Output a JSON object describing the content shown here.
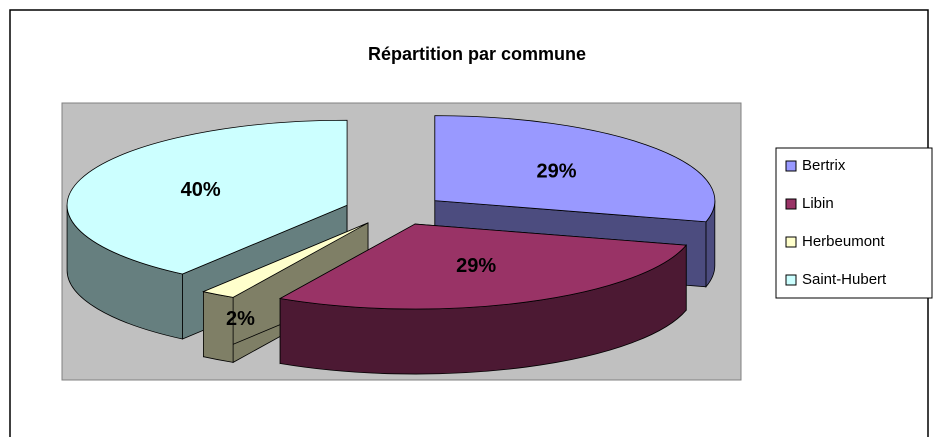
{
  "chart_data": {
    "type": "pie",
    "title": "Répartition par commune",
    "categories": [
      "Bertrix",
      "Libin",
      "Herbeumont",
      "Saint-Hubert"
    ],
    "values": [
      29,
      29,
      2,
      40
    ],
    "value_labels": [
      "29%",
      "29%",
      "2%",
      "40%"
    ],
    "colors": [
      "#9999ff",
      "#993366",
      "#ffffcc",
      "#ccffff"
    ]
  }
}
